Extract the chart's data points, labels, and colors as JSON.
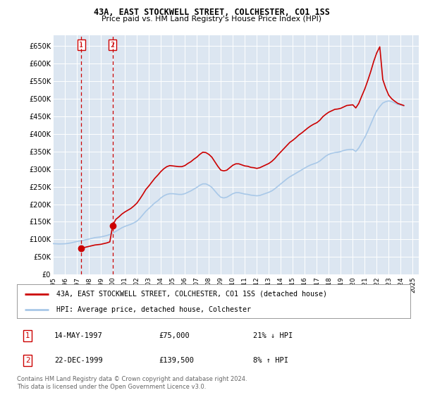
{
  "title": "43A, EAST STOCKWELL STREET, COLCHESTER, CO1 1SS",
  "subtitle": "Price paid vs. HM Land Registry's House Price Index (HPI)",
  "ylim": [
    0,
    680000
  ],
  "yticks": [
    0,
    50000,
    100000,
    150000,
    200000,
    250000,
    300000,
    350000,
    400000,
    450000,
    500000,
    550000,
    600000,
    650000
  ],
  "ytick_labels": [
    "£0",
    "£50K",
    "£100K",
    "£150K",
    "£200K",
    "£250K",
    "£300K",
    "£350K",
    "£400K",
    "£450K",
    "£500K",
    "£550K",
    "£600K",
    "£650K"
  ],
  "plot_bg_color": "#dce6f1",
  "grid_color": "#ffffff",
  "hpi_color": "#a8c8e8",
  "price_color": "#cc0000",
  "sale1_date": 1997.37,
  "sale1_price": 75000,
  "sale1_label": "1",
  "sale2_date": 1999.98,
  "sale2_price": 139500,
  "sale2_label": "2",
  "legend_entries": [
    "43A, EAST STOCKWELL STREET, COLCHESTER, CO1 1SS (detached house)",
    "HPI: Average price, detached house, Colchester"
  ],
  "table_rows": [
    [
      "1",
      "14-MAY-1997",
      "£75,000",
      "21% ↓ HPI"
    ],
    [
      "2",
      "22-DEC-1999",
      "£139,500",
      "8% ↑ HPI"
    ]
  ],
  "footer": "Contains HM Land Registry data © Crown copyright and database right 2024.\nThis data is licensed under the Open Government Licence v3.0.",
  "hpi_data": {
    "years": [
      1995.0,
      1995.25,
      1995.5,
      1995.75,
      1996.0,
      1996.25,
      1996.5,
      1996.75,
      1997.0,
      1997.25,
      1997.5,
      1997.75,
      1998.0,
      1998.25,
      1998.5,
      1998.75,
      1999.0,
      1999.25,
      1999.5,
      1999.75,
      2000.0,
      2000.25,
      2000.5,
      2000.75,
      2001.0,
      2001.25,
      2001.5,
      2001.75,
      2002.0,
      2002.25,
      2002.5,
      2002.75,
      2003.0,
      2003.25,
      2003.5,
      2003.75,
      2004.0,
      2004.25,
      2004.5,
      2004.75,
      2005.0,
      2005.25,
      2005.5,
      2005.75,
      2006.0,
      2006.25,
      2006.5,
      2006.75,
      2007.0,
      2007.25,
      2007.5,
      2007.75,
      2008.0,
      2008.25,
      2008.5,
      2008.75,
      2009.0,
      2009.25,
      2009.5,
      2009.75,
      2010.0,
      2010.25,
      2010.5,
      2010.75,
      2011.0,
      2011.25,
      2011.5,
      2011.75,
      2012.0,
      2012.25,
      2012.5,
      2012.75,
      2013.0,
      2013.25,
      2013.5,
      2013.75,
      2014.0,
      2014.25,
      2014.5,
      2014.75,
      2015.0,
      2015.25,
      2015.5,
      2015.75,
      2016.0,
      2016.25,
      2016.5,
      2016.75,
      2017.0,
      2017.25,
      2017.5,
      2017.75,
      2018.0,
      2018.25,
      2018.5,
      2018.75,
      2019.0,
      2019.25,
      2019.5,
      2019.75,
      2020.0,
      2020.25,
      2020.5,
      2020.75,
      2021.0,
      2021.25,
      2021.5,
      2021.75,
      2022.0,
      2022.25,
      2022.5,
      2022.75,
      2023.0,
      2023.25,
      2023.5,
      2023.75,
      2024.0,
      2024.25
    ],
    "values": [
      88000,
      87500,
      87000,
      87200,
      87500,
      88500,
      90000,
      92000,
      94000,
      95500,
      97000,
      99000,
      101000,
      103000,
      105000,
      106000,
      107000,
      109000,
      111000,
      114000,
      118000,
      123000,
      128000,
      133000,
      137000,
      140000,
      143000,
      147000,
      152000,
      160000,
      170000,
      180000,
      188000,
      196000,
      204000,
      210000,
      218000,
      224000,
      228000,
      230000,
      230000,
      229000,
      228000,
      228000,
      230000,
      234000,
      238000,
      243000,
      248000,
      254000,
      258000,
      258000,
      254000,
      248000,
      238000,
      228000,
      220000,
      218000,
      220000,
      225000,
      230000,
      233000,
      233000,
      231000,
      229000,
      228000,
      226000,
      225000,
      224000,
      225000,
      228000,
      231000,
      234000,
      238000,
      244000,
      251000,
      258000,
      265000,
      272000,
      278000,
      283000,
      288000,
      293000,
      298000,
      303000,
      308000,
      312000,
      315000,
      318000,
      323000,
      330000,
      337000,
      342000,
      345000,
      347000,
      348000,
      350000,
      353000,
      355000,
      356000,
      356000,
      350000,
      360000,
      375000,
      390000,
      408000,
      428000,
      448000,
      466000,
      478000,
      488000,
      492000,
      494000,
      492000,
      488000,
      484000,
      482000,
      480000
    ]
  },
  "price_line_data": {
    "years": [
      1997.37,
      1997.5,
      1997.75,
      1998.0,
      1998.25,
      1998.5,
      1998.75,
      1999.0,
      1999.25,
      1999.5,
      1999.75,
      1999.98,
      2000.25,
      2000.5,
      2000.75,
      2001.0,
      2001.25,
      2001.5,
      2001.75,
      2002.0,
      2002.25,
      2002.5,
      2002.75,
      2003.0,
      2003.25,
      2003.5,
      2003.75,
      2004.0,
      2004.25,
      2004.5,
      2004.75,
      2005.0,
      2005.25,
      2005.5,
      2005.75,
      2006.0,
      2006.25,
      2006.5,
      2006.75,
      2007.0,
      2007.25,
      2007.5,
      2007.75,
      2008.0,
      2008.25,
      2008.5,
      2008.75,
      2009.0,
      2009.25,
      2009.5,
      2009.75,
      2010.0,
      2010.25,
      2010.5,
      2010.75,
      2011.0,
      2011.25,
      2011.5,
      2011.75,
      2012.0,
      2012.25,
      2012.5,
      2012.75,
      2013.0,
      2013.25,
      2013.5,
      2013.75,
      2014.0,
      2014.25,
      2014.5,
      2014.75,
      2015.0,
      2015.25,
      2015.5,
      2015.75,
      2016.0,
      2016.25,
      2016.5,
      2016.75,
      2017.0,
      2017.25,
      2017.5,
      2017.75,
      2018.0,
      2018.25,
      2018.5,
      2018.75,
      2019.0,
      2019.25,
      2019.5,
      2019.75,
      2020.0,
      2020.25,
      2020.5,
      2020.75,
      2021.0,
      2021.25,
      2021.5,
      2021.75,
      2022.0,
      2022.25,
      2022.5,
      2022.75,
      2023.0,
      2023.25,
      2023.5,
      2023.75,
      2024.0,
      2024.25
    ],
    "values": [
      75000,
      76000,
      78000,
      80000,
      82000,
      84000,
      85000,
      86000,
      88000,
      90000,
      93000,
      139500,
      157000,
      164000,
      172000,
      178000,
      183000,
      188000,
      195000,
      203000,
      215000,
      228000,
      242000,
      252000,
      263000,
      274000,
      283000,
      293000,
      301000,
      307000,
      310000,
      309000,
      308000,
      307000,
      307000,
      310000,
      316000,
      321000,
      328000,
      334000,
      342000,
      348000,
      347000,
      342000,
      334000,
      321000,
      308000,
      297000,
      295000,
      297000,
      304000,
      311000,
      315000,
      315000,
      312000,
      309000,
      308000,
      305000,
      304000,
      302000,
      304000,
      308000,
      312000,
      316000,
      322000,
      330000,
      340000,
      349000,
      358000,
      367000,
      376000,
      382000,
      389000,
      397000,
      403000,
      410000,
      417000,
      423000,
      428000,
      432000,
      439000,
      449000,
      456000,
      462000,
      466000,
      470000,
      471000,
      473000,
      477000,
      481000,
      482000,
      483000,
      474000,
      487000,
      508000,
      528000,
      552000,
      578000,
      607000,
      631000,
      648000,
      555000,
      530000,
      510000,
      500000,
      493000,
      487000,
      484000,
      481000
    ]
  }
}
